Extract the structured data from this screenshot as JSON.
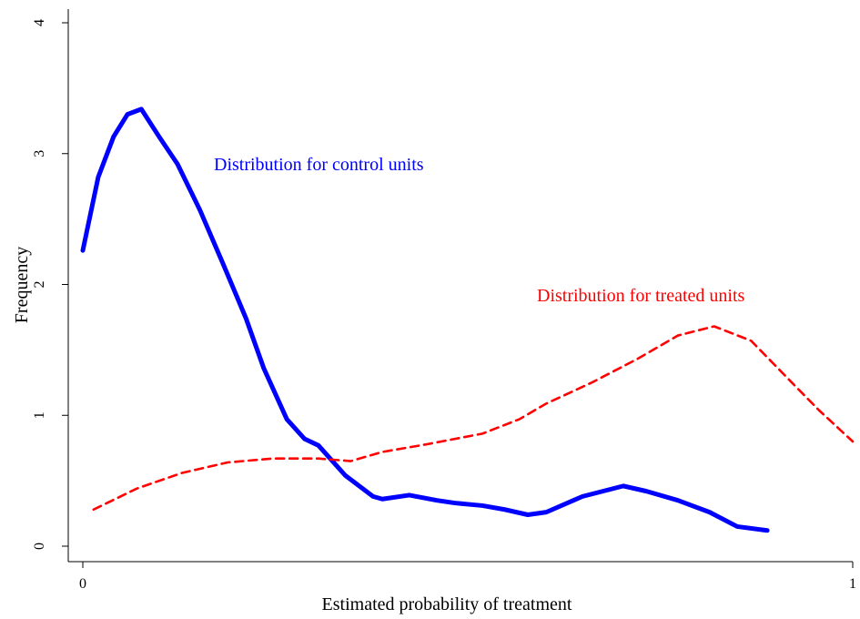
{
  "chart_data": {
    "type": "line",
    "x_label": "Estimated probability of treatment",
    "y_label": "Frequency",
    "xlim": [
      0,
      1
    ],
    "ylim": [
      0,
      4
    ],
    "xticks": [
      0,
      1
    ],
    "yticks": [
      0,
      1,
      2,
      3,
      4
    ],
    "annotations": [
      "Distribution for control units",
      "Distribution for treated units"
    ],
    "series": [
      {
        "name": "control",
        "color": "#0000ff",
        "dash": "solid",
        "x": [
          0,
          0.02,
          0.04,
          0.058,
          0.076,
          0.099,
          0.123,
          0.152,
          0.182,
          0.212,
          0.235,
          0.265,
          0.288,
          0.306,
          0.341,
          0.377,
          0.389,
          0.424,
          0.46,
          0.483,
          0.519,
          0.548,
          0.578,
          0.602,
          0.649,
          0.702,
          0.732,
          0.773,
          0.814,
          0.85,
          0.889
        ],
        "values": [
          2.26,
          2.82,
          3.13,
          3.3,
          3.34,
          3.13,
          2.92,
          2.57,
          2.16,
          1.74,
          1.36,
          0.97,
          0.82,
          0.77,
          0.54,
          0.38,
          0.36,
          0.39,
          0.35,
          0.33,
          0.31,
          0.28,
          0.24,
          0.26,
          0.38,
          0.46,
          0.42,
          0.35,
          0.26,
          0.15,
          0.12
        ]
      },
      {
        "name": "treated",
        "color": "#ff0000",
        "dash": "dashed",
        "x": [
          0.014,
          0.07,
          0.129,
          0.188,
          0.247,
          0.306,
          0.348,
          0.389,
          0.448,
          0.519,
          0.567,
          0.602,
          0.661,
          0.72,
          0.773,
          0.82,
          0.868,
          0.921,
          0.956,
          1.0
        ],
        "values": [
          0.28,
          0.44,
          0.56,
          0.64,
          0.67,
          0.67,
          0.65,
          0.72,
          0.78,
          0.86,
          0.97,
          1.09,
          1.25,
          1.43,
          1.61,
          1.68,
          1.57,
          1.25,
          1.04,
          0.8
        ]
      }
    ]
  }
}
